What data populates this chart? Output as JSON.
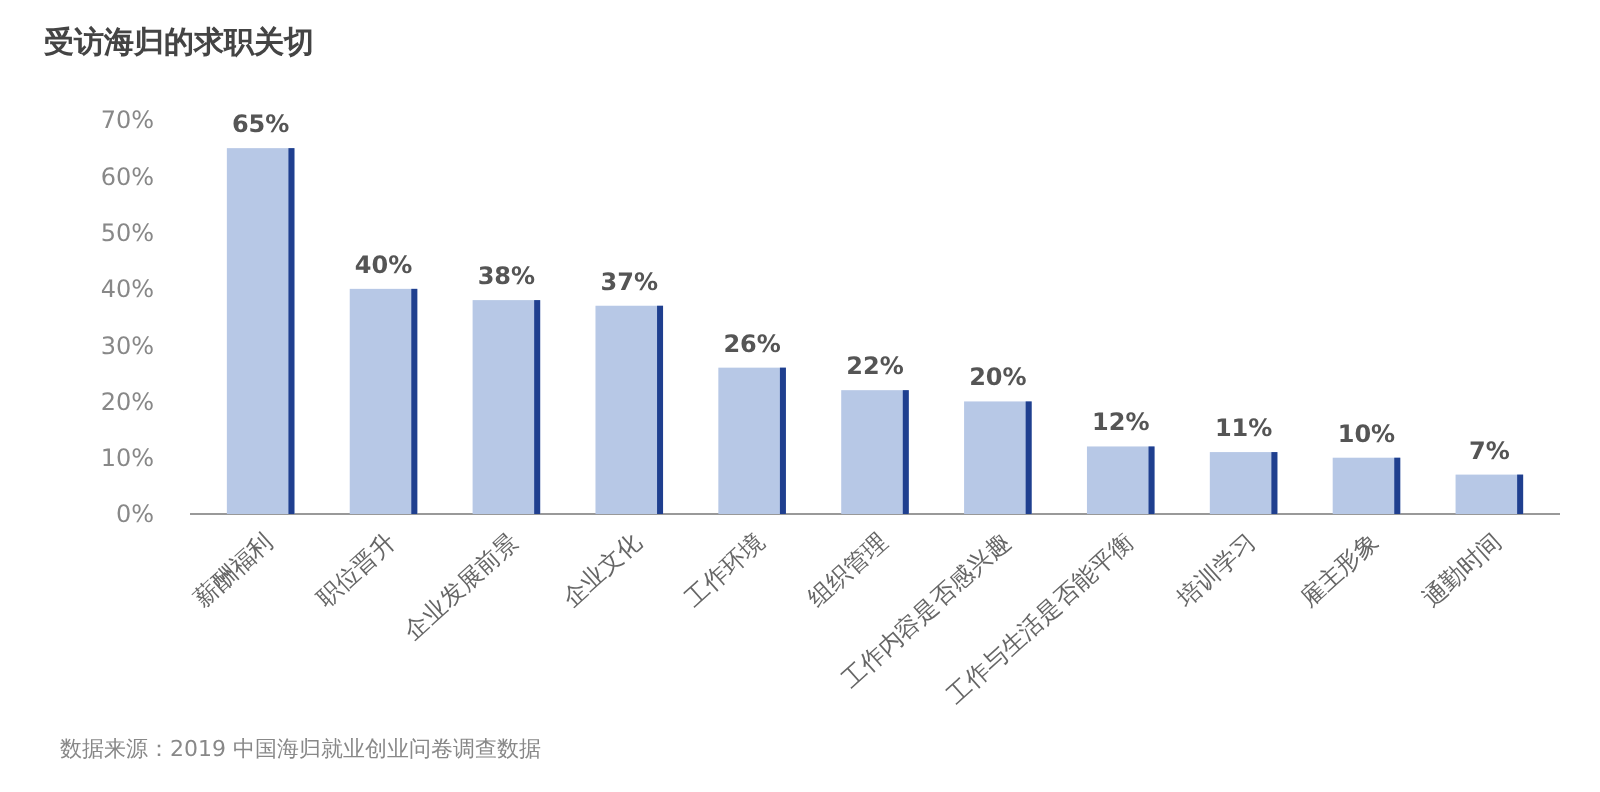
{
  "chart_data": {
    "type": "bar",
    "title": "受访海归的求职关切",
    "categories": [
      "薪酬福利",
      "职位晋升",
      "企业发展前景",
      "企业文化",
      "工作环境",
      "组织管理",
      "工作内容是否感兴趣",
      "工作与生活是否能平衡",
      "培训学习",
      "雇主形象",
      "通勤时间"
    ],
    "values": [
      65,
      40,
      38,
      37,
      26,
      22,
      20,
      12,
      11,
      10,
      7
    ],
    "value_labels": [
      "65%",
      "40%",
      "38%",
      "37%",
      "26%",
      "22%",
      "20%",
      "12%",
      "11%",
      "10%",
      "7%"
    ],
    "color": "#b7c8e6",
    "ylim": [
      0,
      70
    ],
    "yticks": [
      {
        "value": 0,
        "label": "0%"
      },
      {
        "value": 10,
        "label": "10%"
      },
      {
        "value": 20,
        "label": "20%"
      },
      {
        "value": 30,
        "label": "30%"
      },
      {
        "value": 40,
        "label": "40%"
      },
      {
        "value": 50,
        "label": "50%"
      },
      {
        "value": 60,
        "label": "60%"
      },
      {
        "value": 70,
        "label": "70%"
      }
    ],
    "grid": false,
    "annotations": [
      "数据来源：2019 中国海归就业创业问卷调查数据"
    ]
  }
}
